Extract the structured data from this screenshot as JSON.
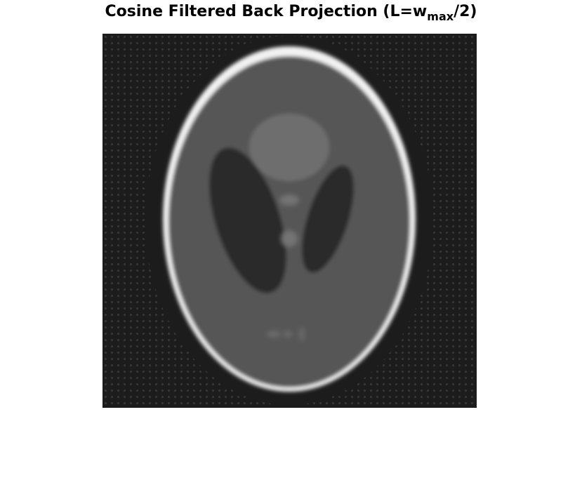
{
  "figure": {
    "title_main": "Cosine Filtered Back Projection (L=w",
    "title_sub": "max",
    "title_tail": "/2)"
  },
  "image": {
    "subject": "shepp-logan-phantom-reconstruction",
    "colormap": "gray",
    "background_color": "#1c1c1c",
    "skull_ring_color": "#f2f2f2",
    "brain_color": "#565656",
    "ventricle_color": "#2b2b2b",
    "upper_blob_color": "#6e6e6e",
    "small_feature_color": "#737373"
  }
}
